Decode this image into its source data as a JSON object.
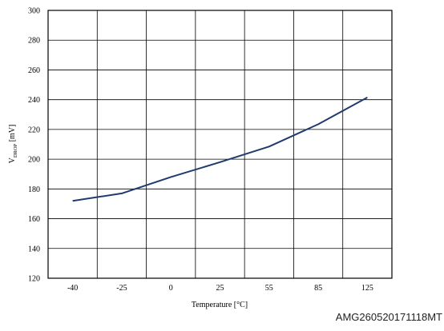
{
  "chart_data": {
    "type": "line",
    "x_categories": [
      "-40",
      "-25",
      "0",
      "25",
      "55",
      "85",
      "125"
    ],
    "x": [
      -40,
      -25,
      0,
      25,
      55,
      85,
      125
    ],
    "y_ticks": [
      120,
      140,
      160,
      180,
      200,
      220,
      240,
      260,
      280,
      300
    ],
    "ylim": [
      120,
      300
    ],
    "xlabel": "Temperature [°C]",
    "ylabel_main": "V",
    "ylabel_sub": "DROP",
    "ylabel_unit": " [mV]",
    "grid": true,
    "series": [
      {
        "values": [
          172,
          177,
          188,
          198,
          208.5,
          223.5,
          241.5
        ],
        "color": "#1f3b6e"
      }
    ]
  },
  "figure_code": "AMG260520171118MT"
}
